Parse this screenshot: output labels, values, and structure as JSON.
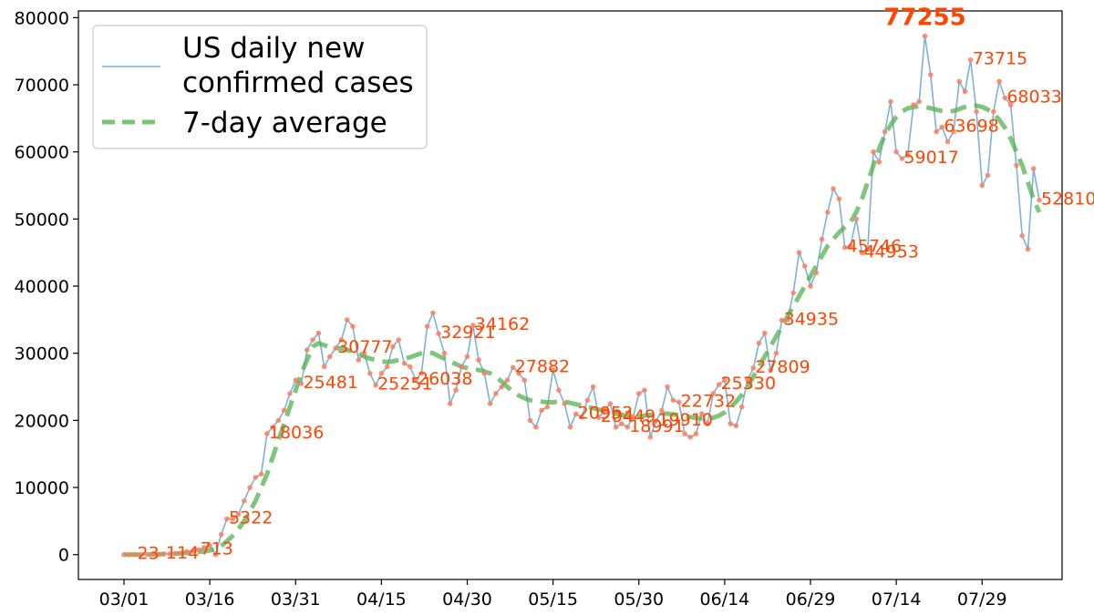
{
  "chart_data": {
    "type": "line",
    "title": "",
    "xlabel": "",
    "ylabel": "",
    "ylim": [
      -3700,
      81000
    ],
    "start_date": "03/01",
    "yticks": [
      "0",
      "10000",
      "20000",
      "30000",
      "40000",
      "50000",
      "60000",
      "70000",
      "80000"
    ],
    "xticks": [
      "03/01",
      "03/16",
      "03/31",
      "04/15",
      "04/30",
      "05/15",
      "05/30",
      "06/14",
      "06/29",
      "07/14",
      "07/29"
    ],
    "legend": {
      "position": "top-left",
      "entries": [
        {
          "label_line1": "US daily new",
          "label_line2": "confirmed cases",
          "color": "#7fb1d8"
        },
        {
          "label_line1": "7-day average",
          "label_line2": "",
          "color": "#4daf4a"
        }
      ]
    },
    "colors": {
      "daily": "#7fb1d8",
      "marker": "#FA8060",
      "average": "#4daf4a",
      "annotation": "#FF4500"
    },
    "series": [
      {
        "name": "US daily new confirmed cases",
        "values": [
          0,
          0,
          23,
          12,
          28,
          75,
          32,
          114,
          122,
          181,
          235,
          460,
          540,
          713,
          1052,
          1362,
          0,
          3000,
          5322,
          5300,
          6000,
          8000,
          10000,
          11500,
          12000,
          18036,
          19000,
          20000,
          21500,
          24000,
          26000,
          25481,
          30500,
          32000,
          33000,
          28000,
          29500,
          30777,
          32000,
          35000,
          34000,
          29000,
          30000,
          27000,
          25251,
          27000,
          28000,
          31000,
          32000,
          28500,
          28000,
          26038,
          27000,
          34000,
          36000,
          32921,
          30000,
          22500,
          24500,
          28000,
          29500,
          34162,
          29000,
          27000,
          22500,
          24000,
          25000,
          26000,
          27882,
          27000,
          26000,
          20000,
          19000,
          21500,
          22000,
          27500,
          24500,
          22500,
          19000,
          20953,
          20500,
          23000,
          25000,
          20449,
          21500,
          22500,
          19000,
          19500,
          18991,
          20500,
          24000,
          24500,
          17500,
          19910,
          21500,
          25000,
          23000,
          22732,
          18000,
          17500,
          18000,
          21000,
          19500,
          24000,
          25330,
          26000,
          19500,
          19200,
          22000,
          26000,
          27809,
          31500,
          33000,
          27500,
          30000,
          34935,
          35000,
          39000,
          45000,
          43000,
          40000,
          42000,
          47000,
          51000,
          54500,
          53000,
          45746,
          46000,
          50000,
          44953,
          45500,
          60000,
          58500,
          63000,
          67500,
          60000,
          59017,
          59500,
          67000,
          67500,
          77255,
          71500,
          63000,
          63698,
          61500,
          63000,
          70500,
          69000,
          73715,
          66000,
          55000,
          56500,
          66000,
          70500,
          68033,
          67000,
          58000,
          47500,
          45500,
          57500,
          52810
        ]
      },
      {
        "name": "7-day average",
        "values": [
          0,
          0,
          10,
          20,
          30,
          40,
          60,
          80,
          110,
          150,
          190,
          250,
          310,
          400,
          500,
          650,
          800,
          1300,
          2000,
          2800,
          3800,
          5000,
          6500,
          8000,
          10000,
          12000,
          14500,
          17000,
          19500,
          22000,
          24500,
          27000,
          29000,
          31000,
          31500,
          31200,
          30900,
          30800,
          30700,
          30500,
          30200,
          30000,
          29500,
          29200,
          29000,
          28800,
          28700,
          28800,
          29000,
          29200,
          29400,
          29700,
          30000,
          30200,
          30000,
          29600,
          29200,
          28800,
          28400,
          28000,
          27800,
          27600,
          27500,
          27300,
          27000,
          26500,
          25800,
          25000,
          24300,
          23700,
          23300,
          23000,
          22900,
          22800,
          22700,
          22700,
          22800,
          22800,
          22600,
          22400,
          22200,
          22000,
          21800,
          21600,
          21400,
          21200,
          21000,
          20800,
          20700,
          20600,
          20600,
          20700,
          20800,
          20900,
          21000,
          21000,
          20900,
          20800,
          20600,
          20500,
          20400,
          20300,
          20300,
          20400,
          20700,
          21200,
          21900,
          22800,
          23800,
          25000,
          26500,
          28000,
          29500,
          31000,
          32500,
          34000,
          35500,
          37000,
          38500,
          40000,
          41500,
          43000,
          44500,
          46000,
          47000,
          48000,
          48800,
          49500,
          51000,
          53000,
          55500,
          58000,
          60500,
          62500,
          64000,
          65200,
          66000,
          66500,
          66700,
          66800,
          66700,
          66500,
          66300,
          66100,
          66000,
          66100,
          66400,
          66700,
          66900,
          66900,
          66700,
          66300,
          65700,
          64800,
          63600,
          62000,
          60000,
          58000,
          55500,
          53000,
          51000
        ]
      }
    ],
    "annotations": [
      {
        "i": 2,
        "text": "23"
      },
      {
        "i": 7,
        "text": "114"
      },
      {
        "i": 13,
        "text": "713"
      },
      {
        "i": 18,
        "text": "5322"
      },
      {
        "i": 25,
        "text": "18036"
      },
      {
        "i": 31,
        "text": "25481"
      },
      {
        "i": 37,
        "text": "30777"
      },
      {
        "i": 44,
        "text": "25251"
      },
      {
        "i": 51,
        "text": "26038"
      },
      {
        "i": 55,
        "text": "32921"
      },
      {
        "i": 61,
        "text": "34162"
      },
      {
        "i": 68,
        "text": "27882"
      },
      {
        "i": 79,
        "text": "20953"
      },
      {
        "i": 83,
        "text": "20449"
      },
      {
        "i": 88,
        "text": "18991"
      },
      {
        "i": 93,
        "text": "19910"
      },
      {
        "i": 97,
        "text": "22732"
      },
      {
        "i": 104,
        "text": "25330"
      },
      {
        "i": 110,
        "text": "27809"
      },
      {
        "i": 115,
        "text": "34935"
      },
      {
        "i": 126,
        "text": "45746"
      },
      {
        "i": 129,
        "text": "44953"
      },
      {
        "i": 136,
        "text": "59017"
      },
      {
        "i": 140,
        "text": "77255",
        "peak": true
      },
      {
        "i": 143,
        "text": "63698"
      },
      {
        "i": 148,
        "text": "73715"
      },
      {
        "i": 154,
        "text": "68033"
      },
      {
        "i": 160,
        "text": "52810"
      }
    ]
  }
}
